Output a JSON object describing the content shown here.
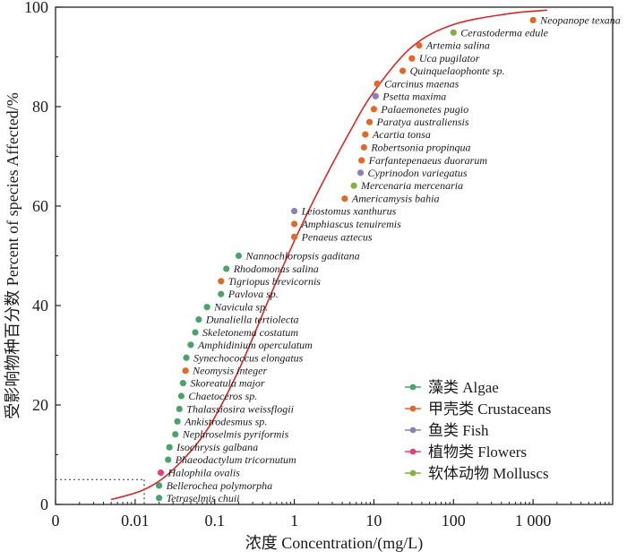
{
  "chart_data": {
    "type": "scatter",
    "xlabel": "浓度 Concentration/(mg/L)",
    "ylabel": "受影响物种百分数 Percent of species Affected/%",
    "x_scale": "log",
    "xlim": [
      0.001,
      10000
    ],
    "ylim": [
      0,
      100
    ],
    "x_ticks": [
      "0",
      "0.01",
      "0.1",
      "1",
      "10",
      "100",
      "1 000"
    ],
    "y_ticks": [
      "0",
      "20",
      "40",
      "60",
      "80",
      "100"
    ],
    "grid": false,
    "legend_position": "bottom-right",
    "categories": [
      {
        "key": "algae",
        "name": "藻类 Algae",
        "color": "#4aa36b"
      },
      {
        "key": "crustaceans",
        "name": "甲壳类 Crustaceans",
        "color": "#e2672b"
      },
      {
        "key": "fish",
        "name": "鱼类 Fish",
        "color": "#8a82b4"
      },
      {
        "key": "flowers",
        "name": "植物类 Flowers",
        "color": "#e0417a"
      },
      {
        "key": "molluscs",
        "name": "软体动物 Molluscs",
        "color": "#82b140"
      }
    ],
    "points": [
      {
        "label": "Tetraselmis chuii",
        "x": 0.02,
        "y": 1.3,
        "category": "algae"
      },
      {
        "label": "Bellerochea polymorpha",
        "x": 0.02,
        "y": 3.8,
        "category": "algae"
      },
      {
        "label": "Halophila ovalis",
        "x": 0.021,
        "y": 6.4,
        "category": "flowers"
      },
      {
        "label": "Phaeodactylum tricornutum",
        "x": 0.026,
        "y": 9.0,
        "category": "algae"
      },
      {
        "label": "Isochrysis galbana",
        "x": 0.027,
        "y": 11.5,
        "category": "algae"
      },
      {
        "label": "Nephroselmis pyriformis",
        "x": 0.032,
        "y": 14.1,
        "category": "algae"
      },
      {
        "label": "Ankistrodesmus sp.",
        "x": 0.034,
        "y": 16.7,
        "category": "algae"
      },
      {
        "label": "Thalassiosira weissflogii",
        "x": 0.036,
        "y": 19.2,
        "category": "algae"
      },
      {
        "label": "Chaetoceros sp.",
        "x": 0.038,
        "y": 21.8,
        "category": "algae"
      },
      {
        "label": "Skoreatula major",
        "x": 0.04,
        "y": 24.4,
        "category": "algae"
      },
      {
        "label": "Neomysis integer",
        "x": 0.043,
        "y": 26.9,
        "category": "crustaceans"
      },
      {
        "label": "Synechococcus elongatus",
        "x": 0.044,
        "y": 29.5,
        "category": "algae"
      },
      {
        "label": "Amphidinium operculatum",
        "x": 0.05,
        "y": 32.1,
        "category": "algae"
      },
      {
        "label": "Skeletonema costatum",
        "x": 0.057,
        "y": 34.6,
        "category": "algae"
      },
      {
        "label": "Dunaliella tertiolecta",
        "x": 0.063,
        "y": 37.2,
        "category": "algae"
      },
      {
        "label": "Navicula sp.",
        "x": 0.08,
        "y": 39.7,
        "category": "algae"
      },
      {
        "label": "Pavlova sp.",
        "x": 0.12,
        "y": 42.3,
        "category": "algae"
      },
      {
        "label": "Tigriopus brevicornis",
        "x": 0.12,
        "y": 44.9,
        "category": "crustaceans"
      },
      {
        "label": "Rhodomonas salina",
        "x": 0.14,
        "y": 47.4,
        "category": "algae"
      },
      {
        "label": "Nannochloropsis gaditana",
        "x": 0.2,
        "y": 50.0,
        "category": "algae"
      },
      {
        "label": "Penaeus aztecus",
        "x": 1.0,
        "y": 53.8,
        "category": "crustaceans"
      },
      {
        "label": "Amphiascus tenuiremis",
        "x": 1.0,
        "y": 56.4,
        "category": "crustaceans"
      },
      {
        "label": "Leiostomus xanthurus",
        "x": 1.0,
        "y": 59.0,
        "category": "fish"
      },
      {
        "label": "Americamysis bahia",
        "x": 4.3,
        "y": 61.5,
        "category": "crustaceans"
      },
      {
        "label": "Mercenaria mercenaria",
        "x": 5.6,
        "y": 64.1,
        "category": "molluscs"
      },
      {
        "label": "Cyprinodon variegatus",
        "x": 6.8,
        "y": 66.7,
        "category": "fish"
      },
      {
        "label": "Farfantepenaeus duorarum",
        "x": 7.0,
        "y": 69.2,
        "category": "crustaceans"
      },
      {
        "label": "Robertsonia propinqua",
        "x": 7.5,
        "y": 71.8,
        "category": "crustaceans"
      },
      {
        "label": "Acartia tonsa",
        "x": 7.8,
        "y": 74.4,
        "category": "crustaceans"
      },
      {
        "label": "Paratya australiensis",
        "x": 8.8,
        "y": 76.9,
        "category": "crustaceans"
      },
      {
        "label": "Palaemonetes pugio",
        "x": 10.0,
        "y": 79.5,
        "category": "crustaceans"
      },
      {
        "label": "Psetta maxima",
        "x": 10.5,
        "y": 82.1,
        "category": "fish"
      },
      {
        "label": "Carcinus maenas",
        "x": 11.0,
        "y": 84.6,
        "category": "crustaceans"
      },
      {
        "label": "Quinquelaophonte sp.",
        "x": 23.0,
        "y": 87.2,
        "category": "crustaceans"
      },
      {
        "label": "Uca pugilator",
        "x": 30.0,
        "y": 89.7,
        "category": "crustaceans"
      },
      {
        "label": "Artemia salina",
        "x": 37.0,
        "y": 92.3,
        "category": "crustaceans"
      },
      {
        "label": "Cerastoderma edule",
        "x": 100.0,
        "y": 94.9,
        "category": "molluscs"
      },
      {
        "label": "Neopanope texana",
        "x": 1000.0,
        "y": 97.4,
        "category": "crustaceans"
      }
    ],
    "fitted_curve": {
      "color": "#d42a2a",
      "points": [
        [
          0.005,
          1.0
        ],
        [
          0.013,
          3.0
        ],
        [
          0.03,
          7.0
        ],
        [
          0.08,
          15.0
        ],
        [
          0.2,
          27.0
        ],
        [
          0.5,
          42.0
        ],
        [
          1.0,
          53.0
        ],
        [
          2.0,
          63.0
        ],
        [
          5.0,
          75.0
        ],
        [
          10.0,
          83.0
        ],
        [
          30.0,
          92.0
        ],
        [
          100.0,
          96.5
        ],
        [
          500.0,
          98.7
        ],
        [
          1500.0,
          99.4
        ]
      ]
    },
    "reference_lines": [
      {
        "style": "dotted",
        "x": 0.013,
        "y": 5
      }
    ]
  }
}
